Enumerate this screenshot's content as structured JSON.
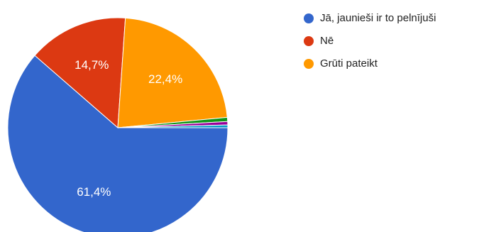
{
  "chart_data": {
    "type": "pie",
    "slices": [
      {
        "label": "Jā, jaunieši ir to pelnījuši",
        "value": 61.4,
        "display": "61,4%",
        "color": "#3366cc"
      },
      {
        "label": "Nē",
        "value": 14.7,
        "display": "14,7%",
        "color": "#dc3912"
      },
      {
        "label": "Grūti pateikt",
        "value": 22.4,
        "display": "22,4%",
        "color": "#ff9900"
      },
      {
        "label": "",
        "value": 0.6,
        "display": "",
        "color": "#109618"
      },
      {
        "label": "",
        "value": 0.5,
        "display": "",
        "color": "#990099"
      },
      {
        "label": "",
        "value": 0.4,
        "display": "",
        "color": "#0099c6"
      }
    ],
    "legend_position": "right"
  },
  "legend": {
    "items": [
      {
        "label": "Jā, jaunieši ir to pelnījuši",
        "color": "#3366cc"
      },
      {
        "label": "Nē",
        "color": "#dc3912"
      },
      {
        "label": "Grūti pateikt",
        "color": "#ff9900"
      }
    ]
  }
}
